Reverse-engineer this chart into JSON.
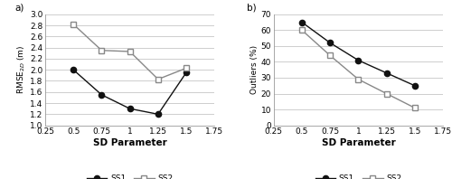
{
  "sd_params": [
    0.5,
    0.75,
    1.0,
    1.25,
    1.5
  ],
  "rmse_ss1": [
    2.0,
    1.55,
    1.3,
    1.2,
    1.95
  ],
  "rmse_ss2": [
    2.82,
    2.35,
    2.33,
    1.83,
    2.03
  ],
  "outliers_ss1": [
    65,
    52,
    41,
    33,
    25
  ],
  "outliers_ss2": [
    60,
    44,
    29,
    20,
    11
  ],
  "xlabel": "SD Parameter",
  "ylabel_a": "RMSE$_{2D}$ (m)",
  "ylabel_b": "Outliers (%)",
  "label_a": "a)",
  "label_b": "b)",
  "legend_ss1": "SS1",
  "legend_ss2": "SS2",
  "xlim": [
    0.25,
    1.75
  ],
  "xticks": [
    0.25,
    0.5,
    0.75,
    1.0,
    1.25,
    1.5,
    1.75
  ],
  "xtick_labels": [
    "0.25",
    "0.5",
    "0.75",
    "1",
    "1.25",
    "1.5",
    "1.75"
  ],
  "ylim_a": [
    1.0,
    3.0
  ],
  "yticks_a": [
    1.0,
    1.2,
    1.4,
    1.6,
    1.8,
    2.0,
    2.2,
    2.4,
    2.6,
    2.8,
    3.0
  ],
  "ylim_b": [
    0,
    70
  ],
  "yticks_b": [
    0,
    10,
    20,
    30,
    40,
    50,
    60,
    70
  ],
  "color_ss1": "#111111",
  "color_ss2": "#888888",
  "bg_color": "#ffffff",
  "grid_color": "#bbbbbb",
  "font_size": 6.5,
  "xlabel_fontsize": 7.5,
  "marker_ss1": "o",
  "marker_ss2": "s",
  "marker_size": 4.5,
  "linewidth": 1.0
}
